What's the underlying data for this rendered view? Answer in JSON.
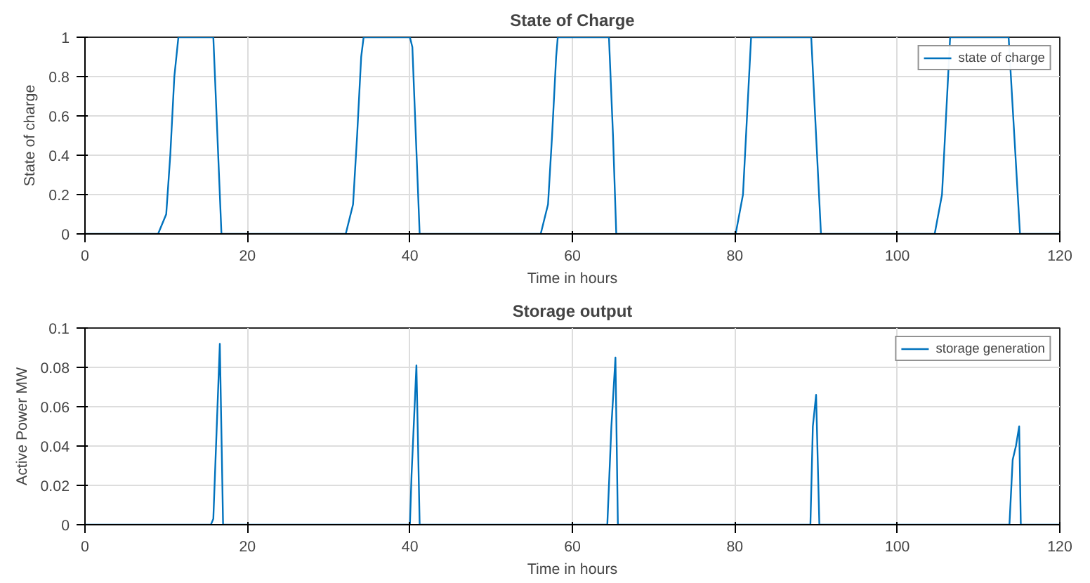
{
  "chart_data": [
    {
      "type": "line",
      "title": "State of Charge",
      "xlabel": "Time in hours",
      "ylabel": "State of charge",
      "series": [
        {
          "name": "state of charge",
          "color": "#0072bd",
          "x": [
            0,
            9,
            10,
            10.5,
            11,
            11.5,
            15.8,
            16.2,
            16.8,
            32.1,
            33,
            33.5,
            34,
            34.3,
            40,
            40.3,
            41.2,
            56.1,
            57,
            57.5,
            58,
            58.2,
            64.5,
            65,
            65.4,
            80.1,
            81,
            81.5,
            82,
            89.4,
            90,
            90.6,
            104.6,
            105.5,
            106,
            106.5,
            113.7,
            114.4,
            115.1,
            120
          ],
          "values": [
            0,
            0,
            0.1,
            0.4,
            0.8,
            1,
            1,
            0.6,
            0,
            0,
            0.15,
            0.5,
            0.9,
            1,
            1,
            0.95,
            0,
            0,
            0.15,
            0.5,
            0.9,
            1,
            1,
            0.5,
            0,
            0,
            0.2,
            0.6,
            1,
            1,
            0.5,
            0,
            0,
            0.2,
            0.6,
            1,
            1,
            0.5,
            0,
            0
          ]
        }
      ],
      "xlim": [
        0,
        120
      ],
      "ylim": [
        0,
        1
      ],
      "xticks": [
        0,
        20,
        40,
        60,
        80,
        100,
        120
      ],
      "yticks": [
        0,
        0.2,
        0.4,
        0.6,
        0.8,
        1
      ],
      "grid": true,
      "legend": "top right",
      "marker": "none",
      "line_style": "solid"
    },
    {
      "type": "line",
      "title": "Storage output",
      "xlabel": "Time in hours",
      "ylabel": "Active Power MW",
      "series": [
        {
          "name": "storage generation",
          "color": "#0072bd",
          "x": [
            0,
            15.5,
            15.8,
            16.6,
            17,
            40,
            40.2,
            40.8,
            41.2,
            64.3,
            64.8,
            65.3,
            65.6,
            89.3,
            89.6,
            90,
            90.4,
            113.8,
            114.2,
            114.6,
            115,
            115.2,
            120
          ],
          "values": [
            0,
            0,
            0.003,
            0.092,
            0,
            0,
            0.025,
            0.081,
            0,
            0,
            0.05,
            0.085,
            0,
            0,
            0.05,
            0.066,
            0,
            0,
            0.033,
            0.04,
            0.05,
            0,
            0
          ]
        }
      ],
      "xlim": [
        0,
        120
      ],
      "ylim": [
        0,
        0.1
      ],
      "xticks": [
        0,
        20,
        40,
        60,
        80,
        100,
        120
      ],
      "yticks": [
        0,
        0.02,
        0.04,
        0.06,
        0.08,
        0.1
      ],
      "grid": true,
      "legend": "top right",
      "marker": "none",
      "line_style": "solid"
    }
  ]
}
